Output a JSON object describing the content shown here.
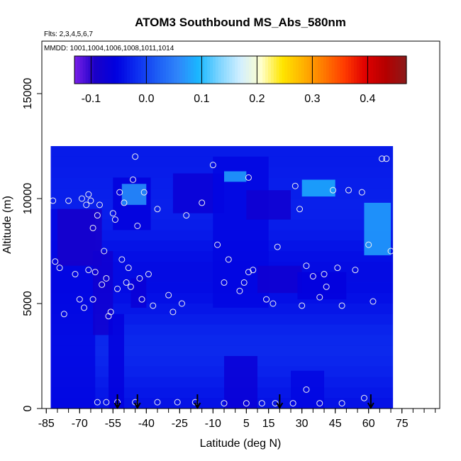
{
  "chart_data": {
    "type": "heatmap",
    "title": "ATOM3 Southbound MS_Abs_580nm",
    "flights_note": "Flts: 2,3,4,5,6,7",
    "dates_note": "MMDD: 1001,1004,1006,1008,1011,1014",
    "xlabel": "Latitude (deg N)",
    "ylabel": "Altitude (m)",
    "xlim": [
      -87,
      92
    ],
    "ylim": [
      0,
      17500
    ],
    "x_tick_labels": [
      "-85",
      "-70",
      "-55",
      "-40",
      "-25",
      "-10",
      "5",
      "15",
      "30",
      "45",
      "60",
      "75"
    ],
    "x_tick_values": [
      -85,
      -70,
      -55,
      -40,
      -25,
      -10,
      5,
      15,
      30,
      45,
      60,
      75
    ],
    "x_minor_step": 5,
    "y_tick_labels": [
      "0",
      "5000",
      "10000",
      "15000"
    ],
    "y_tick_values": [
      0,
      5000,
      10000,
      15000
    ],
    "colorbar": {
      "range": [
        -0.13,
        0.47
      ],
      "tick_labels": [
        "-0.1",
        "0.0",
        "0.1",
        "0.2",
        "0.3",
        "0.4"
      ],
      "tick_values": [
        -0.1,
        0.0,
        0.1,
        0.2,
        0.3,
        0.4
      ],
      "colors": [
        "#7a1fe8",
        "#1a00c8",
        "#0000e0",
        "#0d2ef0",
        "#1d5ef5",
        "#2f86fa",
        "#1ab8ff",
        "#7fd5ff",
        "#d2efff",
        "#ffffcc",
        "#ffe600",
        "#ffb300",
        "#ff7a00",
        "#ff3c00",
        "#e00000",
        "#b50000",
        "#8b1a1a"
      ]
    },
    "field_range": {
      "lat": [
        -83,
        71
      ],
      "alt": [
        0,
        12500
      ]
    },
    "field_cells": [
      {
        "lat": [
          -83,
          -63
        ],
        "alt": [
          0,
          9500
        ],
        "value": -0.05
      },
      {
        "lat": [
          -80,
          -60
        ],
        "alt": [
          6800,
          9500
        ],
        "value": -0.09
      },
      {
        "lat": [
          -64,
          -55
        ],
        "alt": [
          3500,
          7500
        ],
        "value": -0.08
      },
      {
        "lat": [
          -57,
          -50
        ],
        "alt": [
          0,
          4500
        ],
        "value": -0.06
      },
      {
        "lat": [
          -55,
          -38
        ],
        "alt": [
          8500,
          11000
        ],
        "value": -0.06
      },
      {
        "lat": [
          -51,
          -40
        ],
        "alt": [
          9700,
          10700
        ],
        "value": 0.07
      },
      {
        "lat": [
          -47,
          -40
        ],
        "alt": [
          4800,
          6200
        ],
        "value": -0.07
      },
      {
        "lat": [
          -28,
          -5
        ],
        "alt": [
          9300,
          11200
        ],
        "value": -0.07
      },
      {
        "lat": [
          -10,
          15
        ],
        "alt": [
          4800,
          12000
        ],
        "value": -0.05
      },
      {
        "lat": [
          -5,
          5
        ],
        "alt": [
          10800,
          11300
        ],
        "value": 0.08
      },
      {
        "lat": [
          5,
          25
        ],
        "alt": [
          9000,
          10400
        ],
        "value": -0.08
      },
      {
        "lat": [
          10,
          30
        ],
        "alt": [
          5500,
          6800
        ],
        "value": -0.08
      },
      {
        "lat": [
          28,
          50
        ],
        "alt": [
          5200,
          6500
        ],
        "value": -0.06
      },
      {
        "lat": [
          30,
          45
        ],
        "alt": [
          10100,
          10900
        ],
        "value": 0.09
      },
      {
        "lat": [
          58,
          70
        ],
        "alt": [
          7300,
          9800
        ],
        "value": 0.08
      },
      {
        "lat": [
          -5,
          10
        ],
        "alt": [
          0,
          2500
        ],
        "value": -0.07
      },
      {
        "lat": [
          25,
          40
        ],
        "alt": [
          0,
          1800
        ],
        "value": -0.05
      }
    ],
    "samples": [
      {
        "lat": -82,
        "alt": 9900
      },
      {
        "lat": -81,
        "alt": 7000
      },
      {
        "lat": -79,
        "alt": 6700
      },
      {
        "lat": -77,
        "alt": 4500
      },
      {
        "lat": -75,
        "alt": 9900
      },
      {
        "lat": -72,
        "alt": 6400
      },
      {
        "lat": -70,
        "alt": 5200
      },
      {
        "lat": -69,
        "alt": 10000
      },
      {
        "lat": -68,
        "alt": 4800
      },
      {
        "lat": -67,
        "alt": 9700
      },
      {
        "lat": -66,
        "alt": 10200
      },
      {
        "lat": -66,
        "alt": 6600
      },
      {
        "lat": -65,
        "alt": 9900
      },
      {
        "lat": -64,
        "alt": 8600
      },
      {
        "lat": -64,
        "alt": 5200
      },
      {
        "lat": -63,
        "alt": 6500
      },
      {
        "lat": -62,
        "alt": 9200
      },
      {
        "lat": -61,
        "alt": 9700
      },
      {
        "lat": -60,
        "alt": 5900
      },
      {
        "lat": -59,
        "alt": 7500
      },
      {
        "lat": -58,
        "alt": 6200
      },
      {
        "lat": -57,
        "alt": 4400
      },
      {
        "lat": -56,
        "alt": 4600
      },
      {
        "lat": -55,
        "alt": 9300
      },
      {
        "lat": -54,
        "alt": 9000
      },
      {
        "lat": -53,
        "alt": 5700
      },
      {
        "lat": -52,
        "alt": 10300
      },
      {
        "lat": -51,
        "alt": 7100
      },
      {
        "lat": -50,
        "alt": 9800
      },
      {
        "lat": -49,
        "alt": 6000
      },
      {
        "lat": -48,
        "alt": 6700
      },
      {
        "lat": -47,
        "alt": 5800
      },
      {
        "lat": -46,
        "alt": 10900
      },
      {
        "lat": -45,
        "alt": 12000
      },
      {
        "lat": -44,
        "alt": 8700
      },
      {
        "lat": -43,
        "alt": 6200
      },
      {
        "lat": -42,
        "alt": 5200
      },
      {
        "lat": -41,
        "alt": 10300
      },
      {
        "lat": -39,
        "alt": 6400
      },
      {
        "lat": -37,
        "alt": 4900
      },
      {
        "lat": -35,
        "alt": 9500
      },
      {
        "lat": -30,
        "alt": 5400
      },
      {
        "lat": -28,
        "alt": 4600
      },
      {
        "lat": -24,
        "alt": 5000
      },
      {
        "lat": -22,
        "alt": 9200
      },
      {
        "lat": -15,
        "alt": 9800
      },
      {
        "lat": -10,
        "alt": 11600
      },
      {
        "lat": -8,
        "alt": 7800
      },
      {
        "lat": -5,
        "alt": 6000
      },
      {
        "lat": -3,
        "alt": 7100
      },
      {
        "lat": 2,
        "alt": 5600
      },
      {
        "lat": 4,
        "alt": 6000
      },
      {
        "lat": 6,
        "alt": 6500
      },
      {
        "lat": 6,
        "alt": 11000
      },
      {
        "lat": 8,
        "alt": 6600
      },
      {
        "lat": 14,
        "alt": 5200
      },
      {
        "lat": 17,
        "alt": 5000
      },
      {
        "lat": 19,
        "alt": 7700
      },
      {
        "lat": 27,
        "alt": 10600
      },
      {
        "lat": 29,
        "alt": 9500
      },
      {
        "lat": 30,
        "alt": 4900
      },
      {
        "lat": 32,
        "alt": 6800
      },
      {
        "lat": 35,
        "alt": 6300
      },
      {
        "lat": 38,
        "alt": 5300
      },
      {
        "lat": 40,
        "alt": 6400
      },
      {
        "lat": 41,
        "alt": 5800
      },
      {
        "lat": 44,
        "alt": 10400
      },
      {
        "lat": 46,
        "alt": 6700
      },
      {
        "lat": 48,
        "alt": 4900
      },
      {
        "lat": 51,
        "alt": 10400
      },
      {
        "lat": 54,
        "alt": 6600
      },
      {
        "lat": 57,
        "alt": 10300
      },
      {
        "lat": 60,
        "alt": 7800
      },
      {
        "lat": 62,
        "alt": 5100
      },
      {
        "lat": 66,
        "alt": 11900
      },
      {
        "lat": 68,
        "alt": 11900
      },
      {
        "lat": 70,
        "alt": 7500
      },
      {
        "lat": -62,
        "alt": 300
      },
      {
        "lat": -58,
        "alt": 300
      },
      {
        "lat": -53,
        "alt": 300
      },
      {
        "lat": -45,
        "alt": 300
      },
      {
        "lat": -35,
        "alt": 300
      },
      {
        "lat": -26,
        "alt": 300
      },
      {
        "lat": -18,
        "alt": 300
      },
      {
        "lat": -5,
        "alt": 250
      },
      {
        "lat": 5,
        "alt": 250
      },
      {
        "lat": 12,
        "alt": 250
      },
      {
        "lat": 18,
        "alt": 250
      },
      {
        "lat": 26,
        "alt": 250
      },
      {
        "lat": 32,
        "alt": 900
      },
      {
        "lat": 38,
        "alt": 250
      },
      {
        "lat": 48,
        "alt": 250
      },
      {
        "lat": 58,
        "alt": 500
      }
    ],
    "arrows_at_lat": [
      -53,
      -44,
      -17,
      20,
      61
    ]
  }
}
